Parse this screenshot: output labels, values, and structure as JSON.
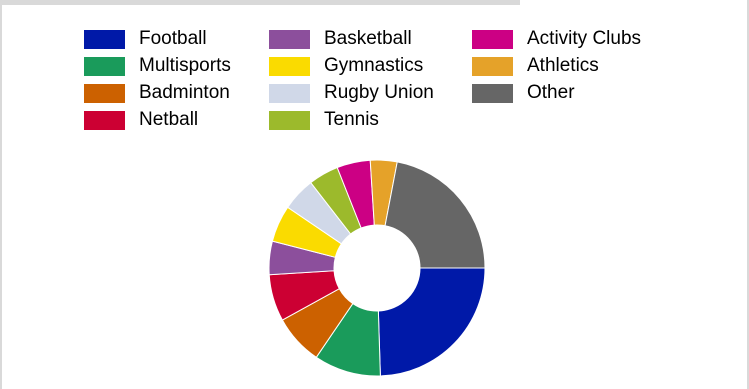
{
  "chart_data": {
    "type": "pie",
    "donut": true,
    "title": "",
    "legend_position": "top",
    "categories": [
      "Football",
      "Multisports",
      "Badminton",
      "Netball",
      "Basketball",
      "Gymnastics",
      "Rugby Union",
      "Tennis",
      "Activity Clubs",
      "Athletics",
      "Other"
    ],
    "values": [
      24.5,
      10,
      7.5,
      7,
      5,
      5.5,
      5,
      4.5,
      5,
      4,
      22
    ],
    "colors": [
      "#0019a8",
      "#1a9b5b",
      "#cc6100",
      "#cc0033",
      "#8c4f9c",
      "#fadb00",
      "#d0d8e8",
      "#9cba2c",
      "#cc0084",
      "#e5a229",
      "#666666"
    ]
  }
}
